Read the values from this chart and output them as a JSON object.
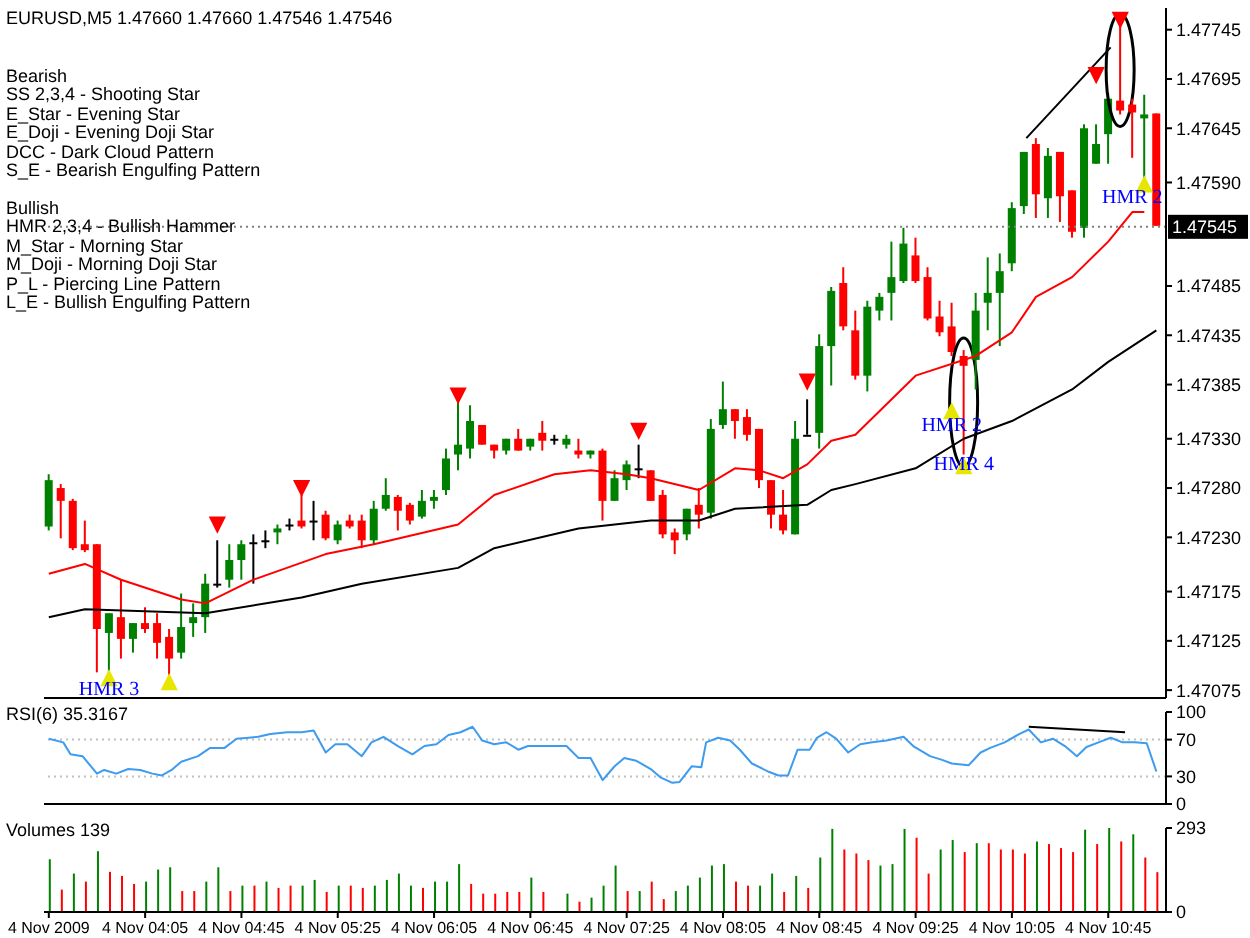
{
  "chart_data": [
    {
      "type": "candlestick",
      "title": "EURUSD,M5 1.47660 1.47660 1.47546 1.47546",
      "x": [
        "2009-11-04T03:25",
        "2009-11-04T03:30",
        "2009-11-04T03:35",
        "2009-11-04T03:40",
        "2009-11-04T03:45",
        "2009-11-04T03:50",
        "2009-11-04T03:55",
        "2009-11-04T04:00",
        "2009-11-04T04:05",
        "2009-11-04T04:10",
        "2009-11-04T04:15",
        "2009-11-04T04:20",
        "2009-11-04T04:25",
        "2009-11-04T04:30",
        "2009-11-04T04:35",
        "2009-11-04T04:40",
        "2009-11-04T04:45",
        "2009-11-04T04:50",
        "2009-11-04T04:55",
        "2009-11-04T05:00",
        "2009-11-04T05:05",
        "2009-11-04T05:10",
        "2009-11-04T05:15",
        "2009-11-04T05:20",
        "2009-11-04T05:25",
        "2009-11-04T05:30",
        "2009-11-04T05:35",
        "2009-11-04T05:40",
        "2009-11-04T05:45",
        "2009-11-04T05:50",
        "2009-11-04T05:55",
        "2009-11-04T06:00",
        "2009-11-04T06:05",
        "2009-11-04T06:10",
        "2009-11-04T06:15",
        "2009-11-04T06:20",
        "2009-11-04T06:25",
        "2009-11-04T06:30",
        "2009-11-04T06:35",
        "2009-11-04T06:40",
        "2009-11-04T06:45",
        "2009-11-04T06:50",
        "2009-11-04T06:55",
        "2009-11-04T07:00",
        "2009-11-04T07:05",
        "2009-11-04T07:10",
        "2009-11-04T07:15",
        "2009-11-04T07:20",
        "2009-11-04T07:25",
        "2009-11-04T07:30",
        "2009-11-04T07:35",
        "2009-11-04T07:40",
        "2009-11-04T07:45",
        "2009-11-04T07:50",
        "2009-11-04T07:55",
        "2009-11-04T08:00",
        "2009-11-04T08:05",
        "2009-11-04T08:10",
        "2009-11-04T08:15",
        "2009-11-04T08:20",
        "2009-11-04T08:25",
        "2009-11-04T08:30",
        "2009-11-04T08:35",
        "2009-11-04T08:40",
        "2009-11-04T08:45",
        "2009-11-04T08:50",
        "2009-11-04T08:55",
        "2009-11-04T09:00",
        "2009-11-04T09:05",
        "2009-11-04T09:10",
        "2009-11-04T09:15",
        "2009-11-04T09:20",
        "2009-11-04T09:25",
        "2009-11-04T09:30",
        "2009-11-04T09:35",
        "2009-11-04T09:40",
        "2009-11-04T09:45",
        "2009-11-04T09:50",
        "2009-11-04T09:55",
        "2009-11-04T10:00",
        "2009-11-04T10:05",
        "2009-11-04T10:10",
        "2009-11-04T10:15",
        "2009-11-04T10:20",
        "2009-11-04T10:25",
        "2009-11-04T10:30",
        "2009-11-04T10:35",
        "2009-11-04T10:40",
        "2009-11-04T10:45",
        "2009-11-04T10:50",
        "2009-11-04T10:55",
        "2009-11-04T11:00",
        "2009-11-04T11:05"
      ],
      "ohlc": [
        [
          1.47241,
          1.47294,
          1.47237,
          1.47288
        ],
        [
          1.4728,
          1.47284,
          1.47229,
          1.47267
        ],
        [
          1.47267,
          1.47269,
          1.47217,
          1.47219
        ],
        [
          1.47223,
          1.47247,
          1.47215,
          1.47217
        ],
        [
          1.47223,
          1.47223,
          1.47093,
          1.47137
        ],
        [
          1.47133,
          1.47153,
          1.47093,
          1.47153
        ],
        [
          1.47149,
          1.47187,
          1.47107,
          1.47127
        ],
        [
          1.47127,
          1.47143,
          1.47113,
          1.47143
        ],
        [
          1.47143,
          1.47159,
          1.47133,
          1.47137
        ],
        [
          1.47143,
          1.47153,
          1.47107,
          1.47123
        ],
        [
          1.47129,
          1.47137,
          1.47089,
          1.47107
        ],
        [
          1.47113,
          1.47173,
          1.47107,
          1.47139
        ],
        [
          1.47143,
          1.47163,
          1.47129,
          1.47149
        ],
        [
          1.47149,
          1.47193,
          1.47133,
          1.47183
        ],
        [
          1.47183,
          1.47227,
          1.47179,
          1.47183
        ],
        [
          1.47187,
          1.47223,
          1.47179,
          1.47207
        ],
        [
          1.47207,
          1.47227,
          1.47187,
          1.47223
        ],
        [
          1.47225,
          1.47233,
          1.47183,
          1.47225
        ],
        [
          1.47227,
          1.47237,
          1.47219,
          1.47227
        ],
        [
          1.47235,
          1.47243,
          1.47223,
          1.47239
        ],
        [
          1.47243,
          1.47249,
          1.47237,
          1.47243
        ],
        [
          1.47247,
          1.47273,
          1.47239,
          1.47241
        ],
        [
          1.47247,
          1.47267,
          1.47227,
          1.47247
        ],
        [
          1.47253,
          1.47257,
          1.47227,
          1.47229
        ],
        [
          1.47227,
          1.47247,
          1.47223,
          1.47243
        ],
        [
          1.47247,
          1.47253,
          1.47239,
          1.47241
        ],
        [
          1.47247,
          1.47253,
          1.47219,
          1.47227
        ],
        [
          1.47227,
          1.47267,
          1.47223,
          1.47259
        ],
        [
          1.47259,
          1.4729,
          1.47257,
          1.47273
        ],
        [
          1.47271,
          1.47273,
          1.47237,
          1.47257
        ],
        [
          1.47263,
          1.47265,
          1.47243,
          1.47247
        ],
        [
          1.47251,
          1.47278,
          1.47249,
          1.47267
        ],
        [
          1.47267,
          1.47278,
          1.47259,
          1.47271
        ],
        [
          1.47278,
          1.4732,
          1.47273,
          1.4731
        ],
        [
          1.47314,
          1.47368,
          1.47298,
          1.47324
        ],
        [
          1.4732,
          1.47364,
          1.4731,
          1.47348
        ],
        [
          1.47344,
          1.47344,
          1.47324,
          1.47324
        ],
        [
          1.47324,
          1.47324,
          1.4731,
          1.47318
        ],
        [
          1.47318,
          1.4733,
          1.47314,
          1.4733
        ],
        [
          1.4733,
          1.4734,
          1.47318,
          1.47318
        ],
        [
          1.47322,
          1.4733,
          1.47318,
          1.4733
        ],
        [
          1.47336,
          1.47348,
          1.47318,
          1.47328
        ],
        [
          1.4733,
          1.47334,
          1.47324,
          1.4733
        ],
        [
          1.47324,
          1.47334,
          1.4732,
          1.4733
        ],
        [
          1.47318,
          1.4733,
          1.4731,
          1.47314
        ],
        [
          1.47314,
          1.47318,
          1.4731,
          1.47318
        ],
        [
          1.47318,
          1.4732,
          1.47247,
          1.47267
        ],
        [
          1.47267,
          1.47298,
          1.47267,
          1.4729
        ],
        [
          1.47288,
          1.47308,
          1.47278,
          1.47304
        ],
        [
          1.473,
          1.47324,
          1.4729,
          1.473
        ],
        [
          1.47298,
          1.47298,
          1.47267,
          1.47267
        ],
        [
          1.47273,
          1.47278,
          1.47229,
          1.47233
        ],
        [
          1.47235,
          1.47239,
          1.47213,
          1.47227
        ],
        [
          1.47233,
          1.47259,
          1.47227,
          1.47259
        ],
        [
          1.47263,
          1.4728,
          1.47239,
          1.47253
        ],
        [
          1.47255,
          1.4735,
          1.47249,
          1.4734
        ],
        [
          1.47344,
          1.47388,
          1.4734,
          1.4736
        ],
        [
          1.4736,
          1.4736,
          1.4733,
          1.47348
        ],
        [
          1.47352,
          1.4736,
          1.47328,
          1.47334
        ],
        [
          1.4734,
          1.4734,
          1.4728,
          1.47288
        ],
        [
          1.47288,
          1.47288,
          1.47239,
          1.47253
        ],
        [
          1.47253,
          1.47278,
          1.47233,
          1.47237
        ],
        [
          1.47233,
          1.47348,
          1.47233,
          1.4733
        ],
        [
          1.47334,
          1.4737,
          1.47334,
          1.47334
        ],
        [
          1.47336,
          1.47436,
          1.4732,
          1.47424
        ],
        [
          1.47424,
          1.47484,
          1.47384,
          1.4748
        ],
        [
          1.47488,
          1.47504,
          1.4744,
          1.47444
        ],
        [
          1.4744,
          1.4746,
          1.4739,
          1.47394
        ],
        [
          1.47394,
          1.4747,
          1.47378,
          1.47464
        ],
        [
          1.4746,
          1.47478,
          1.4745,
          1.47474
        ],
        [
          1.47478,
          1.4753,
          1.4745,
          1.47494
        ],
        [
          1.4749,
          1.47544,
          1.47488,
          1.47528
        ],
        [
          1.47516,
          1.47534,
          1.47488,
          1.4749
        ],
        [
          1.47494,
          1.47504,
          1.4745,
          1.47452
        ],
        [
          1.47454,
          1.4747,
          1.47434,
          1.47438
        ],
        [
          1.47444,
          1.47468,
          1.47414,
          1.47418
        ],
        [
          1.47414,
          1.4742,
          1.47314,
          1.47404
        ],
        [
          1.4741,
          1.47478,
          1.4738,
          1.4746
        ],
        [
          1.47468,
          1.47514,
          1.4744,
          1.47478
        ],
        [
          1.47478,
          1.47518,
          1.47424,
          1.475
        ],
        [
          1.47508,
          1.4757,
          1.475,
          1.47564
        ],
        [
          1.47566,
          1.47621,
          1.47558,
          1.47621
        ],
        [
          1.47629,
          1.47635,
          1.47554,
          1.47578
        ],
        [
          1.47574,
          1.47625,
          1.47554,
          1.47617
        ],
        [
          1.47621,
          1.47621,
          1.4755,
          1.47576
        ],
        [
          1.47582,
          1.47582,
          1.47534,
          1.4754
        ],
        [
          1.47544,
          1.47649,
          1.47534,
          1.47645
        ],
        [
          1.47609,
          1.47649,
          1.47609,
          1.47629
        ],
        [
          1.47639,
          1.47681,
          1.47609,
          1.47675
        ],
        [
          1.47673,
          1.47749,
          1.47659,
          1.47663
        ],
        [
          1.47669,
          1.47675,
          1.47615,
          1.47661
        ],
        [
          1.47655,
          1.47679,
          1.47594,
          1.47659
        ],
        [
          1.4766,
          1.4766,
          1.47546,
          1.47546
        ]
      ],
      "colors": [
        "#008000",
        "#ff0000",
        "#ff0000",
        "#ff0000",
        "#ff0000",
        "#008000",
        "#ff0000",
        "#008000",
        "#ff0000",
        "#ff0000",
        "#ff0000",
        "#008000",
        "#008000",
        "#008000",
        "#000000",
        "#008000",
        "#008000",
        "#000000",
        "#000000",
        "#008000",
        "#000000",
        "#ff0000",
        "#000000",
        "#ff0000",
        "#008000",
        "#ff0000",
        "#ff0000",
        "#008000",
        "#008000",
        "#ff0000",
        "#ff0000",
        "#008000",
        "#008000",
        "#008000",
        "#008000",
        "#008000",
        "#ff0000",
        "#ff0000",
        "#008000",
        "#ff0000",
        "#008000",
        "#ff0000",
        "#000000",
        "#008000",
        "#ff0000",
        "#008000",
        "#ff0000",
        "#008000",
        "#008000",
        "#000000",
        "#ff0000",
        "#ff0000",
        "#ff0000",
        "#008000",
        "#ff0000",
        "#008000",
        "#008000",
        "#ff0000",
        "#ff0000",
        "#ff0000",
        "#ff0000",
        "#ff0000",
        "#008000",
        "#000000",
        "#008000",
        "#008000",
        "#ff0000",
        "#ff0000",
        "#008000",
        "#008000",
        "#008000",
        "#008000",
        "#ff0000",
        "#ff0000",
        "#ff0000",
        "#ff0000",
        "#ff0000",
        "#008000",
        "#008000",
        "#008000",
        "#008000",
        "#008000",
        "#ff0000",
        "#008000",
        "#ff0000",
        "#ff0000",
        "#008000",
        "#008000",
        "#008000",
        "#ff0000",
        "#ff0000",
        "#008000",
        "#ff0000"
      ],
      "series": [
        {
          "type": "line",
          "color": "#ff0000",
          "x": [
            "2009-11-04T03:25",
            "2009-11-04T03:40",
            "2009-11-04T03:55",
            "2009-11-04T04:20",
            "2009-11-04T04:30",
            "2009-11-04T04:50",
            "2009-11-04T05:20",
            "2009-11-04T05:40",
            "2009-11-04T06:15",
            "2009-11-04T06:30",
            "2009-11-04T06:55",
            "2009-11-04T07:10",
            "2009-11-04T07:25",
            "2009-11-04T07:35",
            "2009-11-04T07:55",
            "2009-11-04T08:10",
            "2009-11-04T08:20",
            "2009-11-04T08:30",
            "2009-11-04T08:40",
            "2009-11-04T08:50",
            "2009-11-04T09:00",
            "2009-11-04T09:25",
            "2009-11-04T09:50",
            "2009-11-04T10:05",
            "2009-11-04T10:15",
            "2009-11-04T10:30",
            "2009-11-04T10:45",
            "2009-11-04T10:55",
            "2009-11-04T11:00"
          ],
          "values": [
            1.47193,
            1.47203,
            1.47187,
            1.47167,
            1.47163,
            1.47187,
            1.47213,
            1.47223,
            1.47243,
            1.47273,
            1.47294,
            1.47298,
            1.47294,
            1.4729,
            1.47278,
            1.473,
            1.47298,
            1.4729,
            1.47304,
            1.47328,
            1.47334,
            1.47394,
            1.47414,
            1.47438,
            1.47474,
            1.47494,
            1.4753,
            1.4756,
            1.4756
          ]
        },
        {
          "type": "line",
          "color": "#000000",
          "x": [
            "2009-11-04T03:25",
            "2009-11-04T03:40",
            "2009-11-04T04:05",
            "2009-11-04T04:30",
            "2009-11-04T05:10",
            "2009-11-04T05:35",
            "2009-11-04T06:15",
            "2009-11-04T06:30",
            "2009-11-04T07:05",
            "2009-11-04T07:35",
            "2009-11-04T07:55",
            "2009-11-04T08:10",
            "2009-11-04T08:40",
            "2009-11-04T08:50",
            "2009-11-04T09:00",
            "2009-11-04T09:25",
            "2009-11-04T09:45",
            "2009-11-04T10:05",
            "2009-11-04T10:30",
            "2009-11-04T10:45",
            "2009-11-04T11:05"
          ],
          "values": [
            1.47149,
            1.47157,
            1.47155,
            1.47153,
            1.47169,
            1.47183,
            1.47199,
            1.47219,
            1.47239,
            1.47247,
            1.47247,
            1.47259,
            1.47263,
            1.47278,
            1.47284,
            1.473,
            1.4733,
            1.47348,
            1.4738,
            1.47408,
            1.4744
          ]
        },
        {
          "type": "line",
          "color": "#000000",
          "x": [
            "2009-11-04T10:11",
            "2009-11-04T10:46"
          ],
          "values": [
            1.47635,
            1.47727
          ]
        },
        {
          "type": "scatter",
          "color": "#ff0000",
          "marker": "triangle",
          "x": [
            "2009-11-04T04:35",
            "2009-11-04T05:10",
            "2009-11-04T06:15",
            "2009-11-04T07:30",
            "2009-11-04T08:40",
            "2009-11-04T10:40",
            "2009-11-04T10:50"
          ],
          "values": [
            1.47243,
            1.4728,
            1.47374,
            1.47338,
            1.47388,
            1.47699,
            1.47755
          ]
        },
        {
          "type": "scatter",
          "color": "#e6e600",
          "marker": "triangle",
          "x": [
            "2009-11-04T03:50",
            "2009-11-04T04:15",
            "2009-11-04T09:40",
            "2009-11-04T09:45",
            "2009-11-04T11:00"
          ],
          "values": [
            1.47087,
            1.47083,
            1.47358,
            1.47302,
            1.47588
          ]
        }
      ],
      "annotations": [
        "Bearish",
        "SS 2,3,4 - Shooting Star",
        "E_Star - Evening Star",
        "E_Doji - Evening Doji Star",
        "DCC - Dark Cloud Pattern",
        "S_E - Bearish Engulfing Pattern",
        "Bullish",
        "HMR 2,3,4 - Bullish Hammer",
        "M_Star - Morning Star",
        "M_Doji - Morning Doji Star",
        "P_L - Piercing Line Pattern",
        "L_E - Bullish Engulfing Pattern",
        {
          "text": "HMR 2",
          "x": "2009-11-04T09:40",
          "y": 1.47345
        },
        {
          "text": "HMR 4",
          "x": "2009-11-04T09:45",
          "y": 1.47306
        },
        {
          "text": "HMR 2",
          "x": "2009-11-04T10:55",
          "y": 1.47576
        },
        {
          "text": "HMR 3",
          "x": "2009-11-04T03:50",
          "y": 1.47077
        }
      ],
      "ref_lines": [
        {
          "axis": "y",
          "value": 1.47545,
          "label": "1.47545",
          "color": "#808080",
          "line_style": "dotted"
        }
      ],
      "xlim": [
        "2009-11-04T03:23",
        "2009-11-04T11:09"
      ],
      "ylim": [
        1.47067,
        1.47767
      ],
      "yticks": [
        1.47745,
        1.47695,
        1.47645,
        {
          "value": 1.4759,
          "label": "1.47590"
        },
        1.47485,
        1.47435,
        1.47385,
        {
          "value": 1.4733,
          "label": "1.47330"
        },
        {
          "value": 1.4728,
          "label": "1.47280"
        },
        {
          "value": 1.4723,
          "label": "1.47230"
        },
        1.47175,
        1.47125,
        1.47075
      ],
      "tick_labels": "y"
    },
    {
      "type": "line",
      "title": "RSI(6) 35.3167",
      "series": [
        {
          "color": "#3d9bf0",
          "x": [
            "2009-11-04T03:25",
            "2009-11-04T03:31",
            "2009-11-04T03:34",
            "2009-11-04T03:39",
            "2009-11-04T03:45",
            "2009-11-04T03:48",
            "2009-11-04T03:53",
            "2009-11-04T03:58",
            "2009-11-04T04:03",
            "2009-11-04T04:08",
            "2009-11-04T04:12",
            "2009-11-04T04:16",
            "2009-11-04T04:20",
            "2009-11-04T04:27",
            "2009-11-04T04:32",
            "2009-11-04T04:38",
            "2009-11-04T04:43",
            "2009-11-04T04:48",
            "2009-11-04T04:52",
            "2009-11-04T04:57",
            "2009-11-04T05:04",
            "2009-11-04T05:10",
            "2009-11-04T05:15",
            "2009-11-04T05:20",
            "2009-11-04T05:24",
            "2009-11-04T05:29",
            "2009-11-04T05:35",
            "2009-11-04T05:39",
            "2009-11-04T05:44",
            "2009-11-04T05:50",
            "2009-11-04T05:56",
            "2009-11-04T06:01",
            "2009-11-04T06:06",
            "2009-11-04T06:11",
            "2009-11-04T06:16",
            "2009-11-04T06:21",
            "2009-11-04T06:25",
            "2009-11-04T06:30",
            "2009-11-04T06:35",
            "2009-11-04T06:40",
            "2009-11-04T06:44",
            "2009-11-04T06:49",
            "2009-11-04T06:56",
            "2009-11-04T07:00",
            "2009-11-04T07:05",
            "2009-11-04T07:10",
            "2009-11-04T07:15",
            "2009-11-04T07:20",
            "2009-11-04T07:24",
            "2009-11-04T07:29",
            "2009-11-04T07:35",
            "2009-11-04T07:39",
            "2009-11-04T07:44",
            "2009-11-04T07:47",
            "2009-11-04T07:52",
            "2009-11-04T07:56",
            "2009-11-04T07:58",
            "2009-11-04T08:03",
            "2009-11-04T08:08",
            "2009-11-04T08:12",
            "2009-11-04T08:17",
            "2009-11-04T08:24",
            "2009-11-04T08:28",
            "2009-11-04T08:32",
            "2009-11-04T08:36",
            "2009-11-04T08:41",
            "2009-11-04T08:44",
            "2009-11-04T08:48",
            "2009-11-04T08:52",
            "2009-11-04T08:57",
            "2009-11-04T09:02",
            "2009-11-04T09:07",
            "2009-11-04T09:13",
            "2009-11-04T09:20",
            "2009-11-04T09:24",
            "2009-11-04T09:31",
            "2009-11-04T09:36",
            "2009-11-04T09:40",
            "2009-11-04T09:47",
            "2009-11-04T09:52",
            "2009-11-04T09:56",
            "2009-11-04T10:02",
            "2009-11-04T10:08",
            "2009-11-04T10:12",
            "2009-11-04T10:17",
            "2009-11-04T10:22",
            "2009-11-04T10:27",
            "2009-11-04T10:32",
            "2009-11-04T10:36",
            "2009-11-04T10:41",
            "2009-11-04T10:46",
            "2009-11-04T10:51",
            "2009-11-04T10:56",
            "2009-11-04T11:01",
            "2009-11-04T11:05"
          ],
          "values": [
            71,
            67,
            54,
            52,
            33,
            37,
            33,
            38,
            37,
            33,
            31,
            37,
            46,
            52,
            61,
            61,
            71,
            72,
            73,
            76,
            78,
            78,
            80,
            56,
            65,
            65,
            52,
            67,
            73,
            63,
            54,
            63,
            65,
            75,
            78,
            84,
            69,
            65,
            67,
            59,
            63,
            63,
            63,
            63,
            50,
            50,
            26,
            41,
            50,
            47,
            38,
            29,
            23,
            24,
            41,
            40,
            67,
            72,
            69,
            59,
            44,
            35,
            31,
            31,
            59,
            59,
            72,
            78,
            71,
            56,
            65,
            67,
            69,
            73,
            63,
            52,
            48,
            44,
            42,
            56,
            61,
            67,
            76,
            81,
            67,
            71,
            63,
            52,
            62,
            67,
            72,
            67,
            67,
            66,
            35.3167
          ]
        },
        {
          "color": "#000000",
          "x": [
            "2009-11-04T10:12",
            "2009-11-04T10:52"
          ],
          "values": [
            84,
            78
          ]
        }
      ],
      "ref_lines": [
        {
          "axis": "y",
          "value": 70,
          "color": "#c0c0c0",
          "line_style": "dotted"
        },
        {
          "axis": "y",
          "value": 30,
          "color": "#c0c0c0",
          "line_style": "dotted"
        }
      ],
      "xlim": [
        "2009-11-04T03:23",
        "2009-11-04T11:09"
      ],
      "ylim": [
        0,
        100
      ],
      "yticks": [
        100,
        70,
        30,
        0
      ],
      "tick_labels": "y"
    },
    {
      "type": "bar",
      "title": "Volumes 139",
      "x": [
        "2009-11-04T03:25",
        "2009-11-04T03:30",
        "2009-11-04T03:35",
        "2009-11-04T03:40",
        "2009-11-04T03:45",
        "2009-11-04T03:50",
        "2009-11-04T03:55",
        "2009-11-04T04:00",
        "2009-11-04T04:05",
        "2009-11-04T04:10",
        "2009-11-04T04:15",
        "2009-11-04T04:20",
        "2009-11-04T04:25",
        "2009-11-04T04:30",
        "2009-11-04T04:35",
        "2009-11-04T04:40",
        "2009-11-04T04:45",
        "2009-11-04T04:50",
        "2009-11-04T04:55",
        "2009-11-04T05:00",
        "2009-11-04T05:05",
        "2009-11-04T05:10",
        "2009-11-04T05:15",
        "2009-11-04T05:20",
        "2009-11-04T05:25",
        "2009-11-04T05:30",
        "2009-11-04T05:35",
        "2009-11-04T05:40",
        "2009-11-04T05:45",
        "2009-11-04T05:50",
        "2009-11-04T05:55",
        "2009-11-04T06:00",
        "2009-11-04T06:05",
        "2009-11-04T06:10",
        "2009-11-04T06:15",
        "2009-11-04T06:20",
        "2009-11-04T06:25",
        "2009-11-04T06:30",
        "2009-11-04T06:35",
        "2009-11-04T06:40",
        "2009-11-04T06:45",
        "2009-11-04T06:50",
        "2009-11-04T06:55",
        "2009-11-04T07:00",
        "2009-11-04T07:05",
        "2009-11-04T07:10",
        "2009-11-04T07:15",
        "2009-11-04T07:20",
        "2009-11-04T07:25",
        "2009-11-04T07:30",
        "2009-11-04T07:35",
        "2009-11-04T07:40",
        "2009-11-04T07:45",
        "2009-11-04T07:50",
        "2009-11-04T07:55",
        "2009-11-04T08:00",
        "2009-11-04T08:05",
        "2009-11-04T08:10",
        "2009-11-04T08:15",
        "2009-11-04T08:20",
        "2009-11-04T08:25",
        "2009-11-04T08:30",
        "2009-11-04T08:35",
        "2009-11-04T08:40",
        "2009-11-04T08:45",
        "2009-11-04T08:50",
        "2009-11-04T08:55",
        "2009-11-04T09:00",
        "2009-11-04T09:05",
        "2009-11-04T09:10",
        "2009-11-04T09:15",
        "2009-11-04T09:20",
        "2009-11-04T09:25",
        "2009-11-04T09:30",
        "2009-11-04T09:35",
        "2009-11-04T09:40",
        "2009-11-04T09:45",
        "2009-11-04T09:50",
        "2009-11-04T09:55",
        "2009-11-04T10:00",
        "2009-11-04T10:05",
        "2009-11-04T10:10",
        "2009-11-04T10:15",
        "2009-11-04T10:20",
        "2009-11-04T10:25",
        "2009-11-04T10:30",
        "2009-11-04T10:35",
        "2009-11-04T10:40",
        "2009-11-04T10:45",
        "2009-11-04T10:50",
        "2009-11-04T10:55",
        "2009-11-04T11:00",
        "2009-11-04T11:05"
      ],
      "values": [
        184,
        78,
        134,
        106,
        212,
        140,
        126,
        98,
        106,
        148,
        156,
        73,
        73,
        106,
        156,
        73,
        92,
        92,
        106,
        84,
        92,
        92,
        112,
        70,
        92,
        92,
        84,
        92,
        112,
        134,
        92,
        84,
        106,
        106,
        167,
        98,
        64,
        64,
        70,
        70,
        120,
        70,
        null,
        64,
        36,
        50,
        92,
        162,
        73,
        73,
        106,
        45,
        73,
        92,
        120,
        162,
        167,
        106,
        92,
        92,
        134,
        70,
        126,
        84,
        190,
        290,
        218,
        204,
        181,
        162,
        167,
        290,
        259,
        134,
        218,
        251,
        209,
        240,
        240,
        218,
        218,
        204,
        246,
        237,
        223,
        209,
        287,
        237,
        293,
        246,
        271,
        190,
        139
      ],
      "colors": [
        "#008000",
        "#ff0000",
        "#008000",
        "#ff0000",
        "#008000",
        "#ff0000",
        "#ff0000",
        "#ff0000",
        "#008000",
        "#008000",
        "#008000",
        "#ff0000",
        "#ff0000",
        "#008000",
        "#008000",
        "#ff0000",
        "#008000",
        "#ff0000",
        "#008000",
        "#ff0000",
        "#ff0000",
        "#008000",
        "#008000",
        "#ff0000",
        "#008000",
        "#ff0000",
        "#ff0000",
        "#008000",
        "#008000",
        "#008000",
        "#008000",
        "#ff0000",
        "#008000",
        "#008000",
        "#008000",
        "#ff0000",
        "#ff0000",
        "#ff0000",
        "#ff0000",
        "#ff0000",
        "#008000",
        "#ff0000",
        "#008000",
        "#008000",
        "#ff0000",
        "#008000",
        "#008000",
        "#008000",
        "#ff0000",
        "#008000",
        "#ff0000",
        "#ff0000",
        "#008000",
        "#008000",
        "#008000",
        "#008000",
        "#008000",
        "#ff0000",
        "#ff0000",
        "#008000",
        "#008000",
        "#ff0000",
        "#008000",
        "#ff0000",
        "#008000",
        "#008000",
        "#ff0000",
        "#ff0000",
        "#ff0000",
        "#008000",
        "#008000",
        "#008000",
        "#ff0000",
        "#ff0000",
        "#008000",
        "#008000",
        "#ff0000",
        "#008000",
        "#ff0000",
        "#ff0000",
        "#ff0000",
        "#ff0000",
        "#008000",
        "#ff0000",
        "#ff0000",
        "#ff0000",
        "#008000",
        "#ff0000",
        "#008000",
        "#ff0000",
        "#008000",
        "#ff0000",
        "#ff0000"
      ],
      "xlim": [
        "2009-11-04T03:23",
        "2009-11-04T11:09"
      ],
      "ylim": [
        0,
        293
      ],
      "yticks": [
        293,
        0
      ],
      "xticks": [
        {
          "value": "2009-11-04T03:25",
          "label": "4 Nov 2009"
        },
        {
          "value": "2009-11-04T04:05",
          "label": "4 Nov 04:05"
        },
        {
          "value": "2009-11-04T04:45",
          "label": "4 Nov 04:45"
        },
        {
          "value": "2009-11-04T05:25",
          "label": "4 Nov 05:25"
        },
        {
          "value": "2009-11-04T06:05",
          "label": "4 Nov 06:05"
        },
        {
          "value": "2009-11-04T06:45",
          "label": "4 Nov 06:45"
        },
        {
          "value": "2009-11-04T07:25",
          "label": "4 Nov 07:25"
        },
        {
          "value": "2009-11-04T08:05",
          "label": "4 Nov 08:05"
        },
        {
          "value": "2009-11-04T08:45",
          "label": "4 Nov 08:45"
        },
        {
          "value": "2009-11-04T09:25",
          "label": "4 Nov 09:25"
        },
        {
          "value": "2009-11-04T10:05",
          "label": "4 Nov 10:05"
        },
        {
          "value": "2009-11-04T10:45",
          "label": "4 Nov 10:45"
        }
      ]
    }
  ]
}
